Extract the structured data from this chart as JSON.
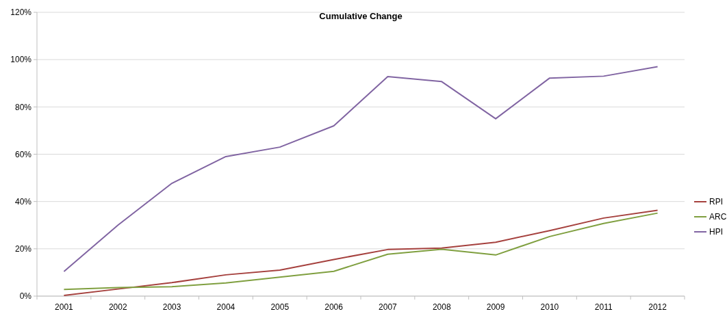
{
  "chart_data": {
    "type": "line",
    "title": "Cumulative Change",
    "categories": [
      "2001",
      "2002",
      "2003",
      "2004",
      "2005",
      "2006",
      "2007",
      "2008",
      "2009",
      "2010",
      "2011",
      "2012"
    ],
    "series": [
      {
        "name": "RPI",
        "color": "#a5403d",
        "values": [
          0.3,
          3,
          5.7,
          9,
          11,
          15.5,
          19.7,
          20.3,
          22.8,
          27.7,
          33,
          36.3
        ]
      },
      {
        "name": "ARC",
        "color": "#7f9f3f",
        "values": [
          2.8,
          3.6,
          4,
          5.6,
          8,
          10.5,
          17.7,
          19.8,
          17.4,
          25.2,
          30.7,
          35.1
        ]
      },
      {
        "name": "HPI",
        "color": "#8064a2",
        "values": [
          10.4,
          30,
          47.7,
          59,
          63,
          72,
          92.8,
          90.7,
          75,
          92.2,
          93,
          97
        ]
      }
    ],
    "ylim": [
      0,
      120
    ],
    "yticks": [
      {
        "value": 0,
        "label": "0%"
      },
      {
        "value": 20,
        "label": "20%"
      },
      {
        "value": 40,
        "label": "40%"
      },
      {
        "value": 60,
        "label": "60%"
      },
      {
        "value": 80,
        "label": "80%"
      },
      {
        "value": 100,
        "label": "100%"
      },
      {
        "value": 120,
        "label": "120%"
      }
    ],
    "grid": "y",
    "legend": "right",
    "marker": "none",
    "line_style": "solid"
  }
}
